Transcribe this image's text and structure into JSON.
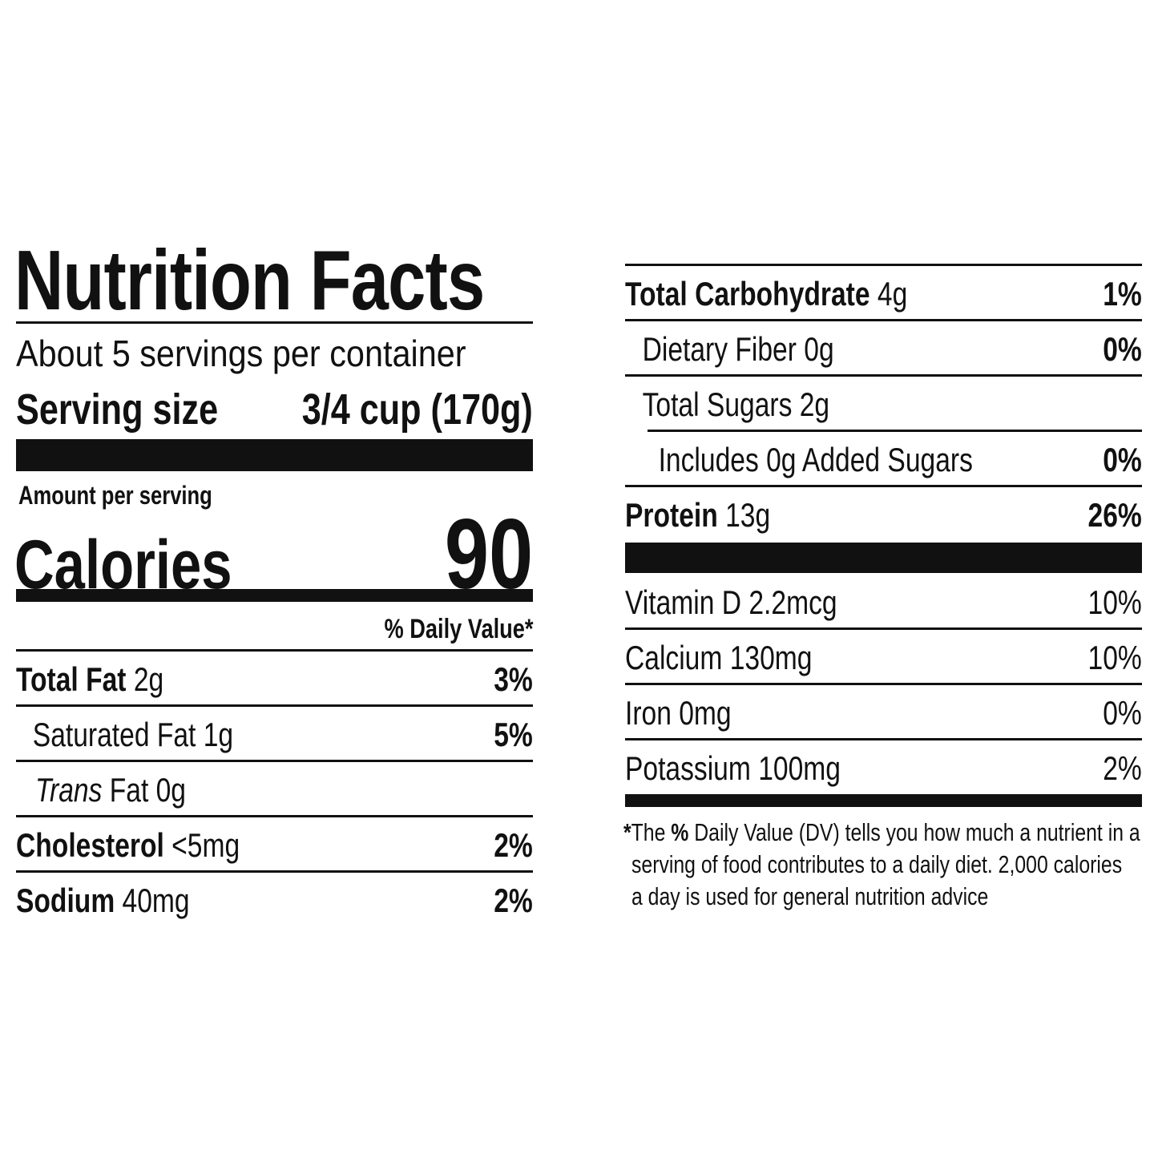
{
  "title": "Nutrition Facts",
  "servings": "About 5 servings per container",
  "serving_size": {
    "label": "Serving size",
    "value": "3/4 cup (170g)"
  },
  "amount_per_serving": "Amount per serving",
  "calories": {
    "label": "Calories",
    "value": 90
  },
  "daily_value_header": "% Daily Value*",
  "left_rows": [
    {
      "name": "Total Fat",
      "amount": "2g",
      "dv": "3%"
    },
    {
      "name": "Saturated Fat",
      "amount": "1g",
      "dv": "5%"
    },
    {
      "name_prefix": "Trans",
      "name": "Fat",
      "amount": "0g"
    },
    {
      "name": "Cholesterol",
      "amount": "<5mg",
      "dv": "2%"
    },
    {
      "name": "Sodium",
      "amount": "40mg",
      "dv": "2%"
    }
  ],
  "right_rows": [
    {
      "name": "Total Carbohydrate",
      "amount": "4g",
      "dv": "1%"
    },
    {
      "name": "Dietary Fiber",
      "amount": "0g",
      "dv": "0%"
    },
    {
      "name": "Total Sugars",
      "amount": "2g"
    },
    {
      "name": "Includes 0g Added Sugars",
      "dv": "0%"
    },
    {
      "name": "Protein",
      "amount": "13g",
      "dv": "26%"
    }
  ],
  "vitamins": [
    {
      "name": "Vitamin D",
      "amount": "2.2mcg",
      "dv": "10%"
    },
    {
      "name": "Calcium",
      "amount": "130mg",
      "dv": "10%"
    },
    {
      "name": "Iron",
      "amount": "0mg",
      "dv": "0%"
    },
    {
      "name": "Potassium",
      "amount": "100mg",
      "dv": "2%"
    }
  ],
  "footnote": {
    "marker": "*",
    "line1": [
      "The",
      "%",
      "Daily Value (DV) tells you how much a nutrient in a"
    ],
    "line2": "serving of food contributes to a daily diet. 2,000 calories",
    "line3": "a day is used for general nutrition advice"
  }
}
